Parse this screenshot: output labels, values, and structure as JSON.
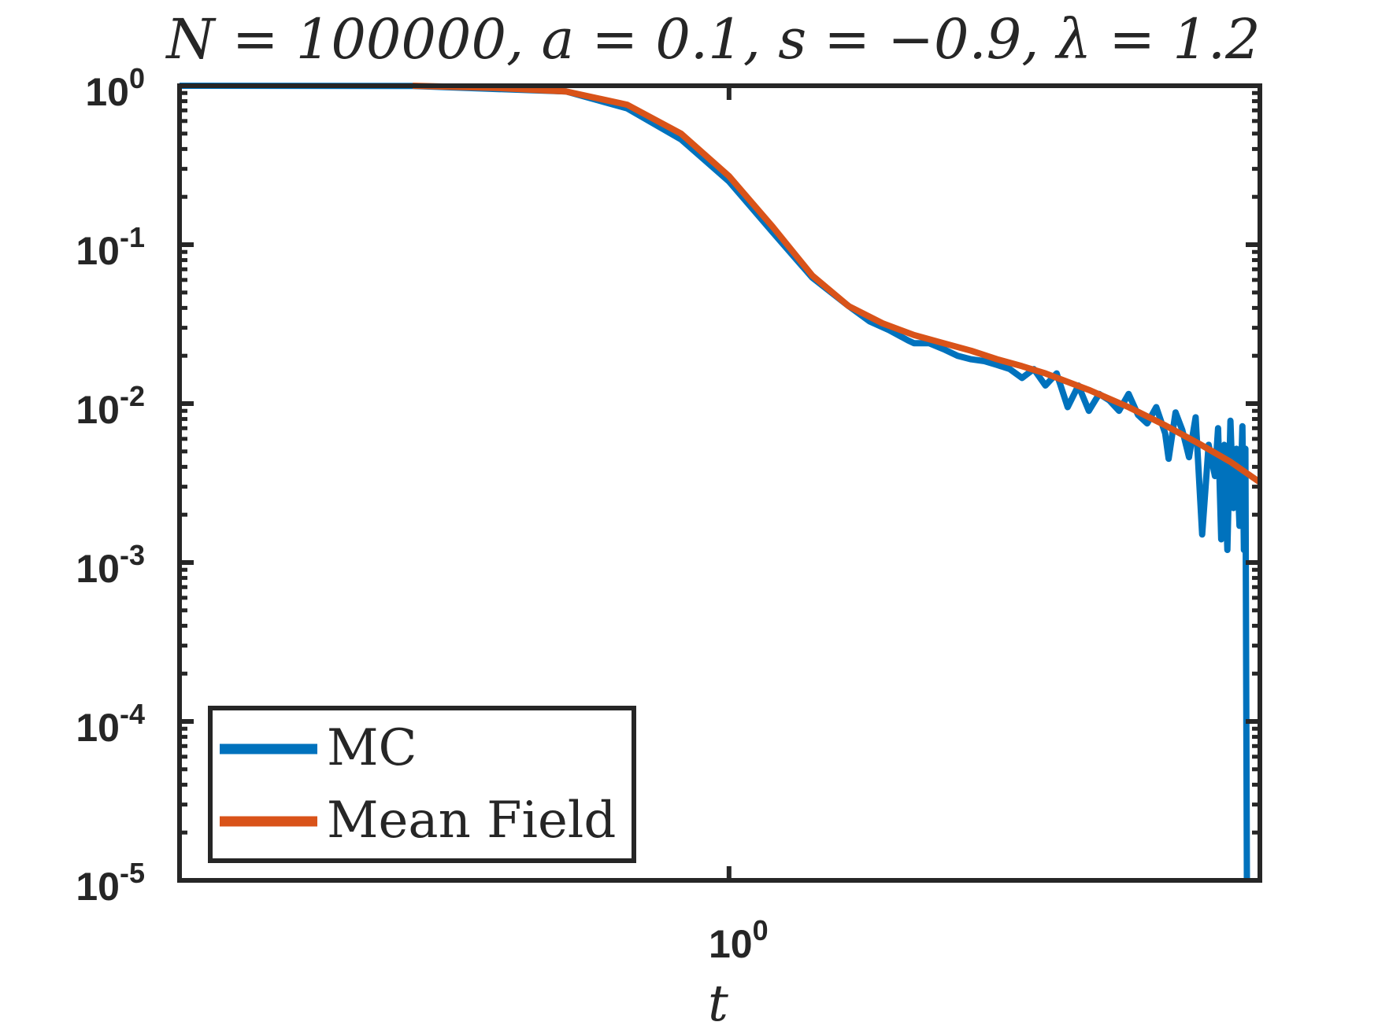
{
  "chart_data": {
    "type": "line",
    "title": "N = 100000, a = 0.1, s = −0.9, λ = 1.2",
    "xlabel": "t",
    "ylabel": "",
    "xscale": "log",
    "yscale": "log",
    "xlim": [
      0.3,
      3.2
    ],
    "ylim": [
      1e-05,
      1
    ],
    "x_ticks": [
      {
        "value": 1,
        "base": "10",
        "exp": "0"
      }
    ],
    "y_ticks": [
      {
        "value": 1,
        "base": "10",
        "exp": "0"
      },
      {
        "value": 0.1,
        "base": "10",
        "exp": "-1"
      },
      {
        "value": 0.01,
        "base": "10",
        "exp": "-2"
      },
      {
        "value": 0.001,
        "base": "10",
        "exp": "-3"
      },
      {
        "value": 0.0001,
        "base": "10",
        "exp": "-4"
      },
      {
        "value": 1e-05,
        "base": "10",
        "exp": "-5"
      }
    ],
    "grid": false,
    "legend_position": "bottom-left",
    "series": [
      {
        "name": "MC",
        "color": "#0072BD",
        "x": [
          0.3,
          0.5,
          0.7,
          0.8,
          0.9,
          1.0,
          1.1,
          1.2,
          1.3,
          1.36,
          1.42,
          1.48,
          1.5,
          1.55,
          1.6,
          1.65,
          1.7,
          1.75,
          1.8,
          1.85,
          1.9,
          1.95,
          2.0,
          2.05,
          2.1,
          2.15,
          2.2,
          2.25,
          2.3,
          2.35,
          2.4,
          2.45,
          2.5,
          2.55,
          2.6,
          2.62,
          2.66,
          2.7,
          2.74,
          2.78,
          2.82,
          2.86,
          2.9,
          2.92,
          2.94,
          2.96,
          2.98,
          3.0,
          3.02,
          3.04,
          3.06,
          3.08,
          3.09,
          3.1,
          3.11
        ],
        "y": [
          1,
          0.997,
          0.92,
          0.72,
          0.46,
          0.25,
          0.12,
          0.062,
          0.041,
          0.033,
          0.029,
          0.025,
          0.024,
          0.024,
          0.022,
          0.02,
          0.019,
          0.0185,
          0.0175,
          0.0165,
          0.0145,
          0.0165,
          0.013,
          0.0155,
          0.0095,
          0.013,
          0.009,
          0.0115,
          0.0105,
          0.009,
          0.0115,
          0.0085,
          0.0075,
          0.0095,
          0.0065,
          0.0045,
          0.0088,
          0.0068,
          0.0046,
          0.0082,
          0.0015,
          0.0055,
          0.0035,
          0.007,
          0.0014,
          0.0055,
          0.0012,
          0.0078,
          0.0022,
          0.0052,
          0.0017,
          0.0072,
          0.0012,
          0.0052,
          1e-05
        ]
      },
      {
        "name": "Mean Field",
        "color": "#D95319",
        "x": [
          0.5,
          0.6,
          0.7,
          0.8,
          0.9,
          1.0,
          1.1,
          1.2,
          1.3,
          1.4,
          1.5,
          1.6,
          1.7,
          1.8,
          1.9,
          2.0,
          2.2,
          2.4,
          2.6,
          2.8,
          3.0,
          3.2
        ],
        "y": [
          1,
          0.97,
          0.92,
          0.76,
          0.5,
          0.27,
          0.13,
          0.064,
          0.041,
          0.032,
          0.027,
          0.024,
          0.0215,
          0.019,
          0.0172,
          0.0155,
          0.0122,
          0.0095,
          0.0073,
          0.0056,
          0.0043,
          0.0032
        ]
      }
    ]
  }
}
